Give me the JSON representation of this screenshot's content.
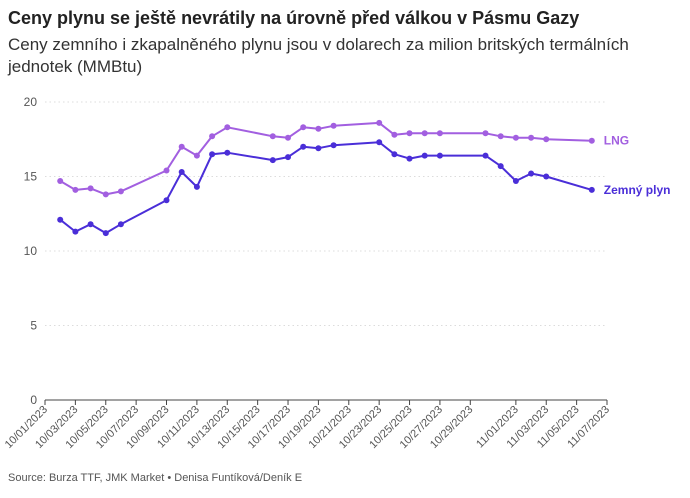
{
  "header": {
    "title": "Ceny plynu se ještě nevrátily na úrovně před válkou v Pásmu Gazy",
    "subtitle": "Ceny zemního i zkapalněného plynu jsou v dolarech za milion britských termálních jednotek (MMBtu)"
  },
  "footer": {
    "source": "Source: Burza TTF, JMK Market • Denisa Funtíková/Deník E"
  },
  "colors": {
    "lng": "#a25fe0",
    "zemny": "#4a2ed8",
    "grid": "#dcdcdc",
    "axis": "#444444"
  },
  "chart_data": {
    "type": "line",
    "x": [
      "2023-10-02",
      "2023-10-03",
      "2023-10-04",
      "2023-10-05",
      "2023-10-06",
      "2023-10-07",
      "2023-10-09",
      "2023-10-10",
      "2023-10-11",
      "2023-10-12",
      "2023-10-13",
      "2023-10-16",
      "2023-10-17",
      "2023-10-18",
      "2023-10-19",
      "2023-10-20",
      "2023-10-23",
      "2023-10-24",
      "2023-10-25",
      "2023-10-26",
      "2023-10-27",
      "2023-10-30",
      "2023-10-31",
      "2023-11-01",
      "2023-11-02",
      "2023-11-03",
      "2023-11-06"
    ],
    "series": [
      {
        "name": "LNG",
        "values": [
          14.7,
          14.1,
          14.2,
          13.8,
          14.0,
          null,
          15.4,
          17.0,
          16.4,
          17.7,
          18.3,
          17.7,
          17.6,
          18.3,
          18.2,
          18.4,
          18.6,
          17.8,
          17.9,
          17.9,
          17.9,
          17.9,
          17.7,
          17.6,
          17.6,
          17.5,
          17.4
        ]
      },
      {
        "name": "Zemný plyn",
        "values": [
          12.1,
          11.3,
          11.8,
          11.2,
          11.8,
          null,
          13.4,
          15.3,
          14.3,
          16.5,
          16.6,
          16.1,
          16.3,
          17.0,
          16.9,
          17.1,
          17.3,
          16.5,
          16.2,
          16.4,
          16.4,
          16.4,
          15.7,
          14.7,
          15.2,
          15.0,
          14.1
        ]
      }
    ],
    "x_tick_labels": [
      "10/01/2023",
      "10/03/2023",
      "10/05/2023",
      "10/07/2023",
      "10/09/2023",
      "10/11/2023",
      "10/13/2023",
      "10/15/2023",
      "10/17/2023",
      "10/19/2023",
      "10/21/2023",
      "10/23/2023",
      "10/25/2023",
      "10/27/2023",
      "10/29/2023",
      "11/01/2023",
      "11/03/2023",
      "11/05/2023",
      "11/07/2023"
    ],
    "y_ticks": [
      "0",
      "5",
      "10",
      "15",
      "20"
    ],
    "ylim": [
      0,
      20
    ],
    "grid": true,
    "legend": "end-of-line labels"
  }
}
